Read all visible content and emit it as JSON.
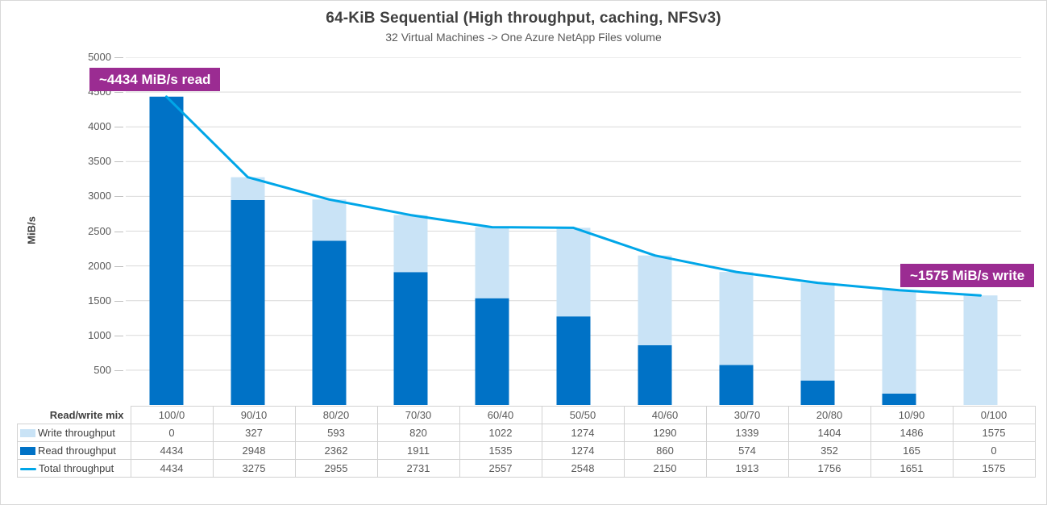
{
  "colors": {
    "read_bar": "#0072c6",
    "write_bar": "#c9e3f6",
    "total_line": "#00a6e8",
    "annotation_bg": "#9b2c92",
    "grid": "#d9d9d9",
    "tick": "#bfbfbf"
  },
  "chart_data": {
    "type": "bar",
    "subtype": "stacked-column-with-line-overlay",
    "title": "64-KiB Sequential (High throughput, caching, NFSv3)",
    "subtitle": "32 Virtual Machines -> One Azure NetApp Files volume",
    "ylabel": "MiB/s",
    "ylim": [
      0,
      5000
    ],
    "ytick_step": 500,
    "grid": true,
    "legend_position": "table-row-labels",
    "x_axis_title": "Read/write mix",
    "categories": [
      "100/0",
      "90/10",
      "80/20",
      "70/30",
      "60/40",
      "50/50",
      "40/60",
      "30/70",
      "20/80",
      "10/90",
      "0/100"
    ],
    "series": [
      {
        "name": "Write throughput",
        "type": "bar",
        "stack_order": "top",
        "swatch": "rect",
        "color": "#c9e3f6",
        "values": [
          0,
          327,
          593,
          820,
          1022,
          1274,
          1290,
          1339,
          1404,
          1486,
          1575
        ]
      },
      {
        "name": "Read throughput",
        "type": "bar",
        "stack_order": "bottom",
        "swatch": "rect",
        "color": "#0072c6",
        "values": [
          4434,
          2948,
          2362,
          1911,
          1535,
          1274,
          860,
          574,
          352,
          165,
          0
        ]
      },
      {
        "name": "Total throughput",
        "type": "line",
        "swatch": "line",
        "color": "#00a6e8",
        "values": [
          4434,
          3275,
          2955,
          2731,
          2557,
          2548,
          2150,
          1913,
          1756,
          1651,
          1575
        ]
      }
    ],
    "annotations": [
      {
        "text": "~4434 MiB/s read",
        "position": "top-left"
      },
      {
        "text": "~1575 MiB/s write",
        "position": "middle-right"
      }
    ]
  }
}
